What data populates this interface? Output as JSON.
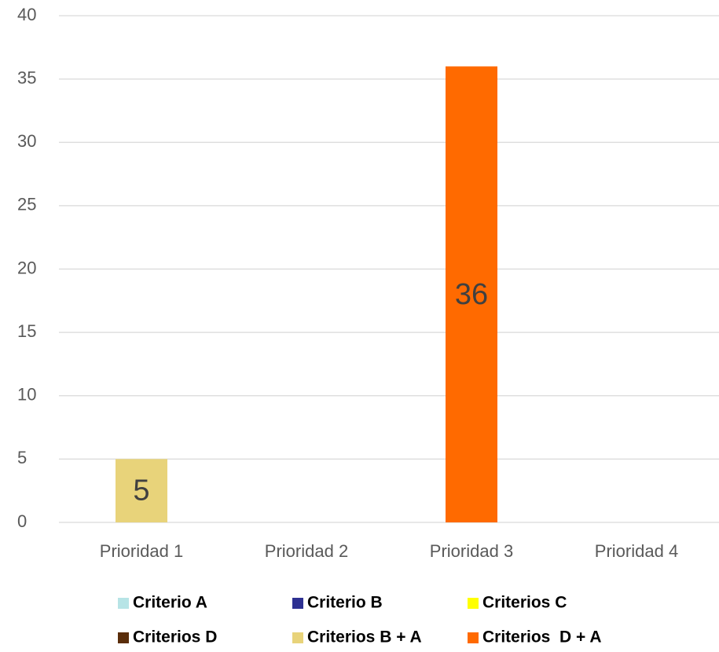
{
  "chart_data": {
    "type": "bar",
    "stacked": true,
    "categories": [
      "Prioridad 1",
      "Prioridad 2",
      "Prioridad 3",
      "Prioridad 4"
    ],
    "series": [
      {
        "name": "Criterio A",
        "color": "#b7e4e6",
        "values": [
          null,
          null,
          null,
          null
        ]
      },
      {
        "name": "Criterio B",
        "color": "#2e3192",
        "values": [
          null,
          null,
          null,
          null
        ]
      },
      {
        "name": "Criterios C",
        "color": "#ffff00",
        "values": [
          null,
          null,
          null,
          null
        ]
      },
      {
        "name": "Criterios D",
        "color": "#5a2d0a",
        "values": [
          null,
          null,
          null,
          null
        ]
      },
      {
        "name": "Criterios B + A",
        "color": "#e8d37a",
        "values": [
          5,
          null,
          null,
          null
        ]
      },
      {
        "name": "Criterios  D + A",
        "color": "#ff6a00",
        "values": [
          null,
          null,
          36,
          null
        ]
      }
    ],
    "ylim": [
      0,
      40
    ],
    "yticks": [
      0,
      5,
      10,
      15,
      20,
      25,
      30,
      35,
      40
    ],
    "grid": true
  }
}
